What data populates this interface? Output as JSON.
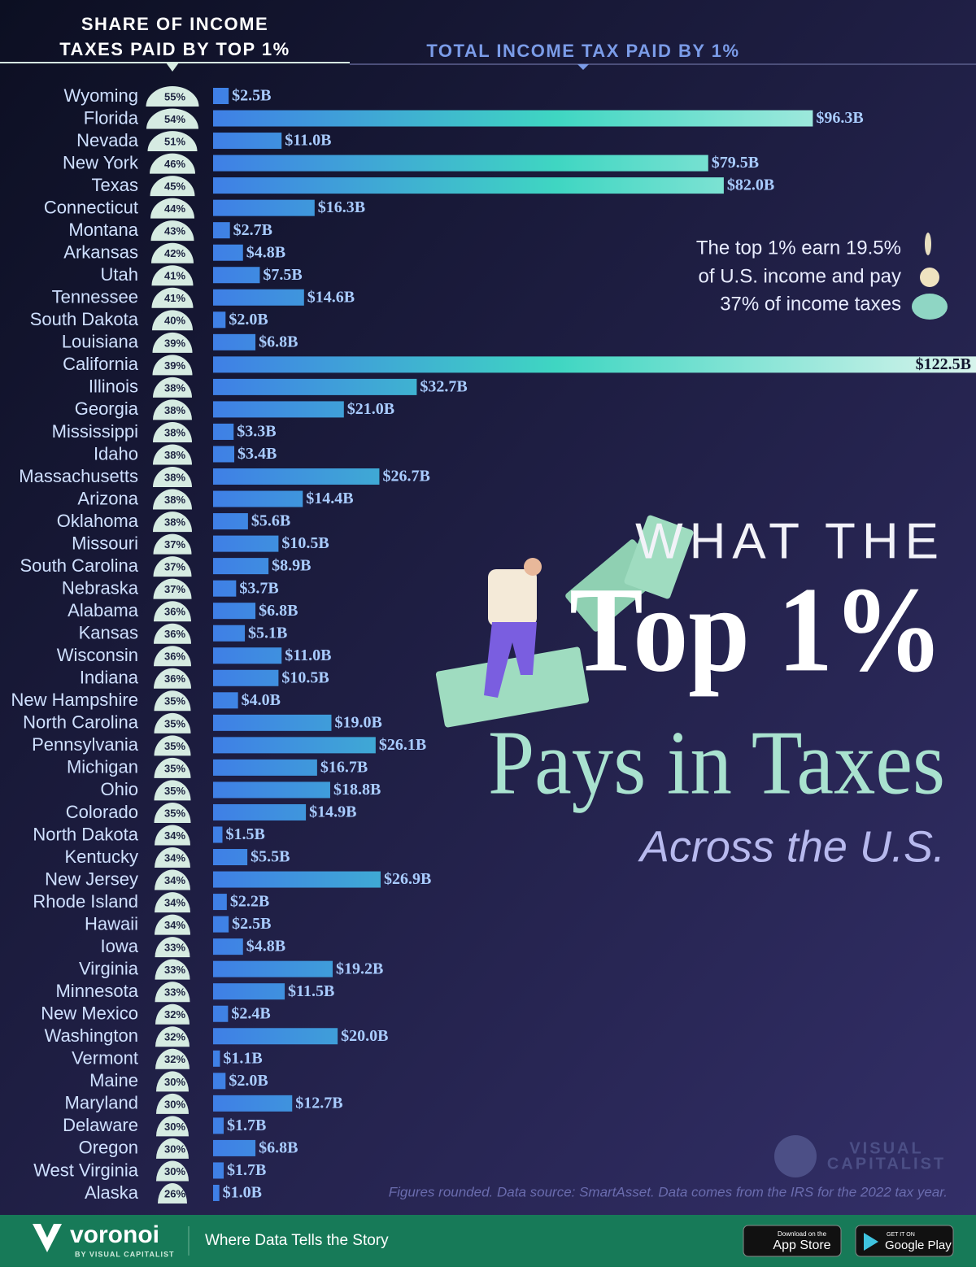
{
  "chart_data": {
    "type": "bar",
    "title_lines": [
      "WHAT THE",
      "Top 1%",
      "Pays in Taxes"
    ],
    "subtitle": "Across the U.S.",
    "share_header": [
      "SHARE OF INCOME",
      "TAXES PAID BY TOP 1%"
    ],
    "annotation": [
      "The top 1% earn 19.5%",
      "of U.S. income and pay",
      "37% of income taxes"
    ],
    "source": "Figures rounded. Data source: SmartAsset. Data comes from the IRS for the 2022 tax year.",
    "categories": [
      "Wyoming",
      "Florida",
      "Nevada",
      "New York",
      "Texas",
      "Connecticut",
      "Montana",
      "Arkansas",
      "Utah",
      "Tennessee",
      "South Dakota",
      "Louisiana",
      "California",
      "Illinois",
      "Georgia",
      "Mississippi",
      "Idaho",
      "Massachusetts",
      "Arizona",
      "Oklahoma",
      "Missouri",
      "South Carolina",
      "Nebraska",
      "Alabama",
      "Kansas",
      "Wisconsin",
      "Indiana",
      "New Hampshire",
      "North Carolina",
      "Pennsylvania",
      "Michigan",
      "Ohio",
      "Colorado",
      "North Dakota",
      "Kentucky",
      "New Jersey",
      "Rhode Island",
      "Hawaii",
      "Iowa",
      "Virginia",
      "Minnesota",
      "New Mexico",
      "Washington",
      "Vermont",
      "Maine",
      "Maryland",
      "Delaware",
      "Oregon",
      "West Virginia",
      "Alaska"
    ],
    "series": [
      {
        "color": "#d6ebe2",
        "values": [
          55,
          54,
          51,
          46,
          45,
          44,
          43,
          42,
          41,
          41,
          40,
          39,
          39,
          38,
          38,
          38,
          38,
          38,
          38,
          38,
          37,
          37,
          37,
          36,
          36,
          36,
          36,
          35,
          35,
          35,
          35,
          35,
          35,
          34,
          34,
          34,
          34,
          34,
          33,
          33,
          33,
          32,
          32,
          32,
          30,
          30,
          30,
          30,
          30,
          26
        ],
        "value_labels": [
          "55%",
          "54%",
          "51%",
          "46%",
          "45%",
          "44%",
          "43%",
          "42%",
          "41%",
          "41%",
          "40%",
          "39%",
          "39%",
          "38%",
          "38%",
          "38%",
          "38%",
          "38%",
          "38%",
          "38%",
          "37%",
          "37%",
          "37%",
          "36%",
          "36%",
          "36%",
          "36%",
          "35%",
          "35%",
          "35%",
          "35%",
          "35%",
          "35%",
          "34%",
          "34%",
          "34%",
          "34%",
          "34%",
          "33%",
          "33%",
          "33%",
          "32%",
          "32%",
          "32%",
          "30%",
          "30%",
          "30%",
          "30%",
          "30%",
          "26%"
        ]
      },
      {
        "name": "TOTAL INCOME TAX PAID BY 1%",
        "color": "#3f7fe6",
        "values": [
          2.5,
          96.3,
          11.0,
          79.5,
          82.0,
          16.3,
          2.7,
          4.8,
          7.5,
          14.6,
          2.0,
          6.8,
          122.5,
          32.7,
          21.0,
          3.3,
          3.4,
          26.7,
          14.4,
          5.6,
          10.5,
          8.9,
          3.7,
          6.8,
          5.1,
          11.0,
          10.5,
          4.0,
          19.0,
          26.1,
          16.7,
          18.8,
          14.9,
          1.5,
          5.5,
          26.9,
          2.2,
          2.5,
          4.8,
          19.2,
          11.5,
          2.4,
          20.0,
          1.1,
          2.0,
          12.7,
          1.7,
          6.8,
          1.7,
          1.0
        ],
        "value_labels": [
          "$2.5B",
          "$96.3B",
          "$11.0B",
          "$79.5B",
          "$82.0B",
          "$16.3B",
          "$2.7B",
          "$4.8B",
          "$7.5B",
          "$14.6B",
          "$2.0B",
          "$6.8B",
          "$122.5B",
          "$32.7B",
          "$21.0B",
          "$3.3B",
          "$3.4B",
          "$26.7B",
          "$14.4B",
          "$5.6B",
          "$10.5B",
          "$8.9B",
          "$3.7B",
          "$6.8B",
          "$5.1B",
          "$11.0B",
          "$10.5B",
          "$4.0B",
          "$19.0B",
          "$26.1B",
          "$16.7B",
          "$18.8B",
          "$14.9B",
          "$1.5B",
          "$5.5B",
          "$26.9B",
          "$2.2B",
          "$2.5B",
          "$4.8B",
          "$19.2B",
          "$11.5B",
          "$2.4B",
          "$20.0B",
          "$1.1B",
          "$2.0B",
          "$12.7B",
          "$1.7B",
          "$6.8B",
          "$1.7B",
          "$1.0B"
        ]
      }
    ],
    "xlim": [
      0,
      122.5
    ]
  },
  "logo": [
    "VISUAL",
    "CAPITALIST"
  ],
  "footer": {
    "brand": "voronoi",
    "byline": "BY VISUAL CAPITALIST",
    "tagline": "Where Data Tells the Story",
    "app_store": [
      "Download on the",
      "App Store"
    ],
    "google_play": [
      "GET IT ON",
      "Google Play"
    ]
  }
}
